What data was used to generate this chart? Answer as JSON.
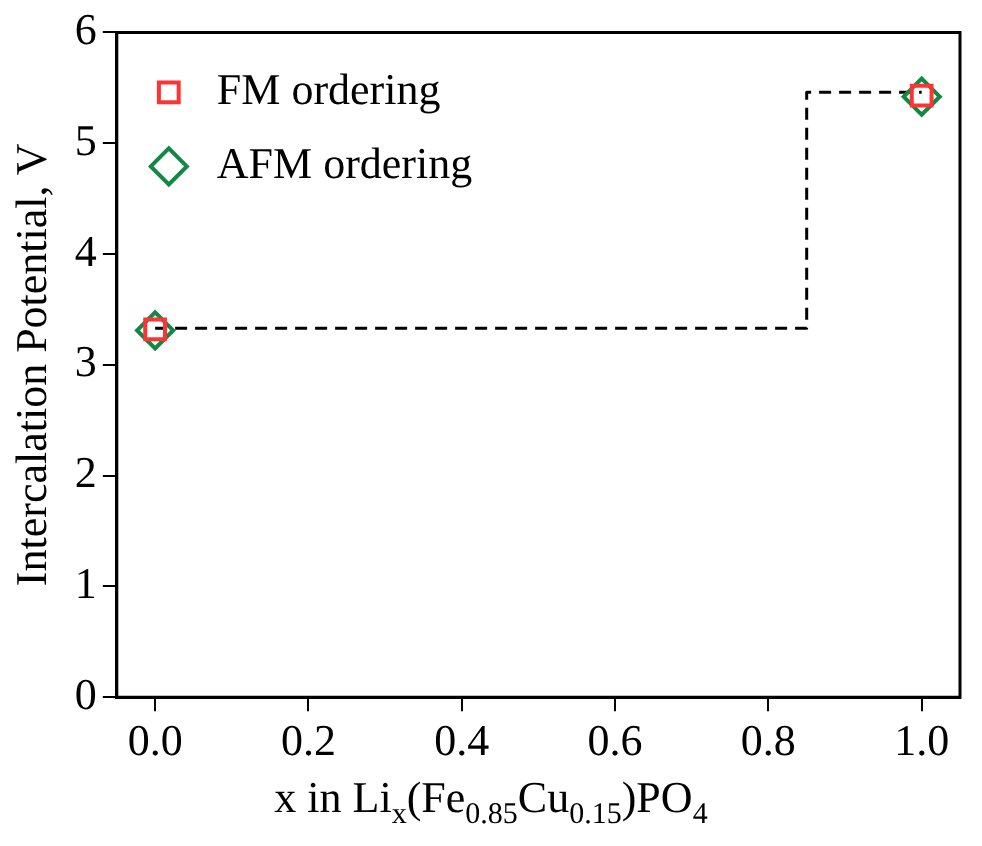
{
  "chart_data": {
    "type": "scatter",
    "xlabel": "x in Li$_{x}$(Fe$_{0.85}$Cu$_{0.15}$)PO$_{4}$",
    "ylabel": "Intercalation Potential, V",
    "x": [
      0,
      1
    ],
    "series": [
      {
        "name": "FM ordering",
        "color": "#ff3333",
        "marker": "square",
        "values": [
          3.32,
          5.43
        ]
      },
      {
        "name": "AFM ordering",
        "color": "#118844",
        "marker": "diamond",
        "values": [
          3.31,
          5.42
        ]
      },
      {
        "type": "line",
        "color": "#000000",
        "line_style": "dashed",
        "marker": "none",
        "x": [
          0,
          0.85,
          0.85,
          1
        ],
        "values": [
          3.33,
          3.33,
          5.46,
          5.46
        ]
      }
    ],
    "xlim": [
      -0.05,
      1.05
    ],
    "xticks": [
      {
        "value": 0,
        "label": "0.0"
      },
      {
        "value": 0.2,
        "label": "0.2"
      },
      {
        "value": 0.4,
        "label": "0.4"
      },
      {
        "value": 0.6,
        "label": "0.6"
      },
      {
        "value": 0.8,
        "label": "0.8"
      },
      {
        "value": 1,
        "label": "1.0"
      }
    ],
    "ylim": [
      0,
      6
    ],
    "yticks": [
      0,
      1,
      2,
      3,
      4,
      5,
      6
    ],
    "legend": "top left",
    "grid": false
  }
}
